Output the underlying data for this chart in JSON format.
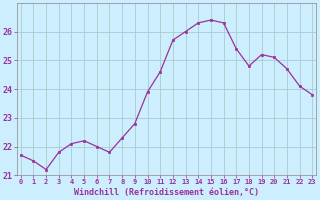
{
  "x": [
    0,
    1,
    2,
    3,
    4,
    5,
    6,
    7,
    8,
    9,
    10,
    11,
    12,
    13,
    14,
    15,
    16,
    17,
    18,
    19,
    20,
    21,
    22,
    23
  ],
  "y": [
    21.7,
    21.5,
    21.2,
    21.8,
    22.1,
    22.2,
    22.0,
    21.8,
    22.3,
    22.8,
    23.9,
    24.6,
    25.7,
    26.0,
    26.3,
    26.4,
    26.3,
    25.4,
    24.8,
    25.2,
    25.1,
    24.7,
    24.1,
    23.8
  ],
  "line_color": "#993399",
  "marker": "s",
  "marker_size": 2.0,
  "bg_color": "#cceeff",
  "grid_color": "#aacccc",
  "tick_color": "#993399",
  "label_color": "#993399",
  "xlabel": "Windchill (Refroidissement éolien,°C)",
  "ylim": [
    21.0,
    27.0
  ],
  "yticks": [
    21,
    22,
    23,
    24,
    25,
    26
  ],
  "xticks": [
    0,
    1,
    2,
    3,
    4,
    5,
    6,
    7,
    8,
    9,
    10,
    11,
    12,
    13,
    14,
    15,
    16,
    17,
    18,
    19,
    20,
    21,
    22,
    23
  ],
  "xlim": [
    -0.3,
    23.3
  ]
}
